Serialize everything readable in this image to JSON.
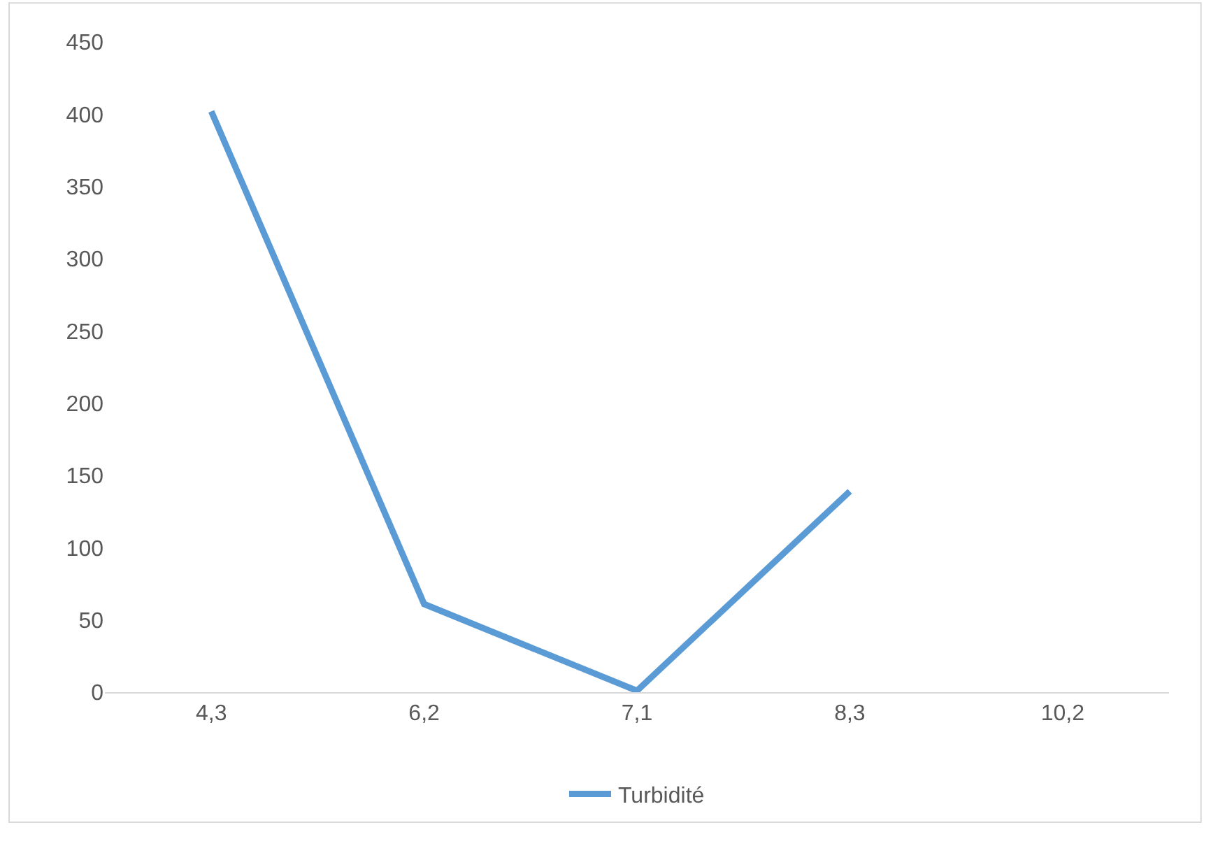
{
  "chart_data": {
    "type": "line",
    "categories": [
      "4,3",
      "6,2",
      "7,1",
      "8,3",
      "10,2"
    ],
    "series": [
      {
        "name": "Turbidité",
        "color": "#5b9bd5",
        "values": [
          402,
          61,
          1,
          139,
          null
        ]
      }
    ],
    "ylim": [
      0,
      450
    ],
    "yticks": [
      0,
      50,
      100,
      150,
      200,
      250,
      300,
      350,
      400,
      450
    ],
    "grid": false,
    "legend": "bottom",
    "marker": "none",
    "line_style": "solid"
  }
}
